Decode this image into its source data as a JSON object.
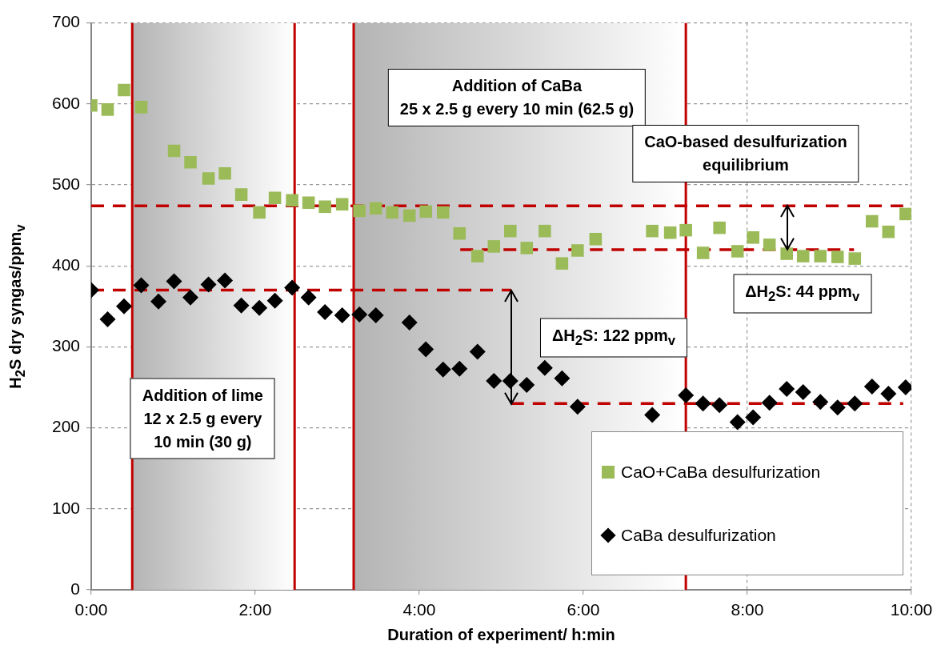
{
  "chart_data": {
    "type": "scatter",
    "xlabel": "Duration of experiment/ h:min",
    "ylabel": "H$_{2}$S dry syngas/ppm$_{v}$",
    "xlim": [
      0,
      10
    ],
    "xticks": [
      {
        "value": 0,
        "label": "0:00"
      },
      {
        "value": 2,
        "label": "2:00"
      },
      {
        "value": 4,
        "label": "4:00"
      },
      {
        "value": 6,
        "label": "6:00"
      },
      {
        "value": 8,
        "label": "8:00"
      },
      {
        "value": 10,
        "label": "10:00"
      }
    ],
    "ylim": [
      0,
      700
    ],
    "yticks": [
      0,
      100,
      200,
      300,
      400,
      500,
      600,
      700
    ],
    "grid": true,
    "legend": "bottom right",
    "series": [
      {
        "name": "CaO+CaBa desulfurization",
        "color": "#9bbb59",
        "marker": "square",
        "x": [
          0,
          0.2,
          0.4,
          0.61,
          1.01,
          1.21,
          1.43,
          1.63,
          1.83,
          2.05,
          2.24,
          2.45,
          2.65,
          2.85,
          3.06,
          3.27,
          3.47,
          3.67,
          3.88,
          4.08,
          4.29,
          4.49,
          4.71,
          4.91,
          5.11,
          5.31,
          5.53,
          5.74,
          5.93,
          6.15,
          6.84,
          7.06,
          7.25,
          7.46,
          7.66,
          7.88,
          8.07,
          8.27,
          8.48,
          8.68,
          8.89,
          9.1,
          9.31,
          9.52,
          9.72,
          9.93
        ],
        "values": [
          598,
          593,
          617,
          596,
          542,
          528,
          508,
          514,
          488,
          466,
          484,
          481,
          478,
          473,
          476,
          468,
          471,
          466,
          462,
          467,
          466,
          440,
          412,
          424,
          443,
          422,
          443,
          403,
          419,
          433,
          443,
          441,
          444,
          416,
          447,
          418,
          435,
          426,
          415,
          412,
          412,
          411,
          409,
          455,
          442,
          464
        ]
      },
      {
        "name": "CaBa desulfurization",
        "color": "#000000",
        "marker": "diamond",
        "x": [
          0,
          0.2,
          0.4,
          0.61,
          0.82,
          1.01,
          1.21,
          1.43,
          1.63,
          1.83,
          2.05,
          2.24,
          2.45,
          2.65,
          2.85,
          3.06,
          3.27,
          3.47,
          3.88,
          4.08,
          4.29,
          4.49,
          4.71,
          4.91,
          5.11,
          5.31,
          5.53,
          5.74,
          5.93,
          6.84,
          7.25,
          7.46,
          7.66,
          7.88,
          8.07,
          8.27,
          8.48,
          8.68,
          8.89,
          9.1,
          9.31,
          9.52,
          9.72,
          9.93
        ],
        "values": [
          370,
          334,
          350,
          376,
          356,
          381,
          361,
          377,
          382,
          351,
          348,
          357,
          373,
          361,
          343,
          339,
          340,
          339,
          330,
          297,
          272,
          273,
          294,
          258,
          258,
          253,
          274,
          261,
          226,
          216,
          240,
          230,
          228,
          207,
          213,
          231,
          248,
          244,
          232,
          225,
          230,
          251,
          242,
          250
        ]
      },
      {
        "type": "line",
        "color": "#c00000",
        "line_style": "dashed",
        "marker": "none",
        "x": [
          0,
          9.9
        ],
        "values": [
          474,
          474
        ]
      },
      {
        "type": "line",
        "color": "#c00000",
        "line_style": "dashed",
        "marker": "none",
        "x": [
          4.5,
          9.3
        ],
        "values": [
          420,
          420
        ]
      },
      {
        "type": "line",
        "color": "#c00000",
        "line_style": "dashed",
        "marker": "none",
        "x": [
          0,
          5.12
        ],
        "values": [
          370,
          370
        ]
      },
      {
        "type": "line",
        "color": "#c00000",
        "line_style": "dashed",
        "marker": "none",
        "x": [
          5.12,
          9.9
        ],
        "values": [
          230,
          230
        ]
      }
    ],
    "bands": [
      {
        "axis": "x",
        "from": 0.5,
        "to": 2.48,
        "color": "#b4b4b4"
      },
      {
        "axis": "x",
        "from": 3.2,
        "to": 7.25,
        "color": "#b4b4b4"
      }
    ],
    "ref_lines": [
      {
        "axis": "x",
        "value": 0.5,
        "color": "#c00000",
        "line_style": "solid"
      },
      {
        "axis": "x",
        "value": 2.48,
        "color": "#c00000",
        "line_style": "solid"
      },
      {
        "axis": "x",
        "value": 3.2,
        "color": "#c00000",
        "line_style": "solid"
      },
      {
        "axis": "x",
        "value": 7.25,
        "color": "#c00000",
        "line_style": "solid"
      }
    ],
    "annotations": [
      "Addition of CaBa\n25 x 2.5 g every 10 min (62.5 g)",
      "CaO-based desulfurization\nequilibrium",
      "Addition of lime\n12 x 2.5 g every\n10 min (30 g)",
      "ΔH$_{2}$S: 122 ppm$_{v}$",
      "ΔH$_{2}$S: 44 ppm$_{v}$"
    ]
  }
}
